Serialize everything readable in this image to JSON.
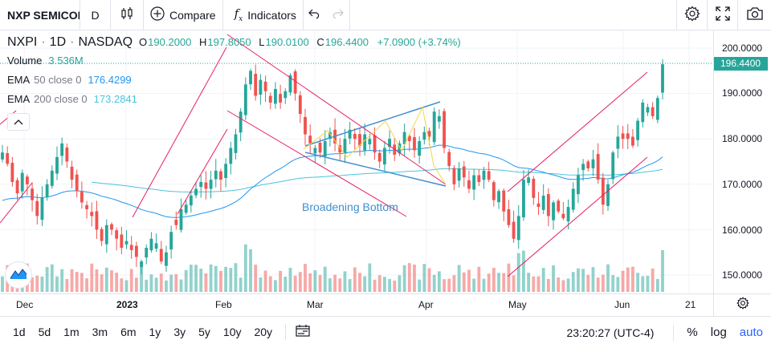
{
  "toolbar": {
    "symbol": "NXP SEMICONDUCTORS",
    "interval": "D",
    "compare_label": "Compare",
    "indicators_label": "Indicators"
  },
  "legend": {
    "symbol": "NXPI",
    "interval": "1D",
    "exchange": "NASDAQ",
    "open_label": "O",
    "open": "190.2000",
    "high_label": "H",
    "high": "197.8050",
    "low_label": "L",
    "low": "190.0100",
    "close_label": "C",
    "close": "196.4400",
    "change": "+7.0900 (+3.74%)",
    "volume_label": "Volume",
    "volume": "3.536M",
    "ema50_label": "EMA",
    "ema50_params": "50 close 0",
    "ema50_value": "176.4299",
    "ema200_label": "EMA",
    "ema200_params": "200 close 0",
    "ema200_value": "173.2841"
  },
  "annotation": {
    "pattern_label": "Broadening Bottom"
  },
  "price_axis": {
    "ticks": [
      "200.0000",
      "190.0000",
      "180.0000",
      "170.0000",
      "160.0000",
      "150.0000"
    ],
    "last_price": "196.4400"
  },
  "time_axis": {
    "ticks": [
      "Dec",
      "2023",
      "Feb",
      "Mar",
      "Apr",
      "May",
      "Jun",
      "21"
    ]
  },
  "bottom_bar": {
    "ranges": [
      "1d",
      "5d",
      "1m",
      "3m",
      "6m",
      "1y",
      "3y",
      "5y",
      "10y",
      "20y"
    ],
    "clock": "23:20:27 (UTC-4)",
    "percent_label": "%",
    "log_label": "log",
    "auto_label": "auto"
  },
  "colors": {
    "up": "#26a69a",
    "down": "#ef5350",
    "ema50": "#2196f3",
    "ema200": "#4dc3dc",
    "trendline": "#e91e63",
    "pattern": "#3f8fd0",
    "highlight": "#f5d547"
  },
  "chart_data": {
    "type": "candlestick",
    "ylim": [
      145,
      203
    ],
    "x_axis_labels": [
      "Dec",
      "2023",
      "Feb",
      "Mar",
      "Apr",
      "May",
      "Jun",
      "21"
    ],
    "y_axis_ticks": [
      150,
      160,
      170,
      180,
      190,
      200
    ],
    "last_close": 196.44,
    "indicators": [
      "EMA 50 close",
      "EMA 200 close",
      "Volume"
    ],
    "closes": [
      177.0,
      174.5,
      170.5,
      168.0,
      172.5,
      170.0,
      166.5,
      163.0,
      167.0,
      170.0,
      173.0,
      176.0,
      179.0,
      175.0,
      171.0,
      168.5,
      166.0,
      164.5,
      163.0,
      160.0,
      157.5,
      161.0,
      160.0,
      158.0,
      156.0,
      157.5,
      155.5,
      154.0,
      153.0,
      156.0,
      158.0,
      157.0,
      153.0,
      155.0,
      159.5,
      161.0,
      164.5,
      165.5,
      167.5,
      169.0,
      170.5,
      169.0,
      171.0,
      173.0,
      171.0,
      174.5,
      178.0,
      181.0,
      186.0,
      192.0,
      195.0,
      189.5,
      193.0,
      190.5,
      188.0,
      191.0,
      188.0,
      190.5,
      194.0,
      190.0,
      185.5,
      181.0,
      179.0,
      178.0,
      177.0,
      179.5,
      181.5,
      179.0,
      177.0,
      180.0,
      182.0,
      180.0,
      178.5,
      181.0,
      180.0,
      177.0,
      175.0,
      178.0,
      180.0,
      176.5,
      179.0,
      181.5,
      179.5,
      177.5,
      179.5,
      181.5,
      180.5,
      186.0,
      185.0,
      178.0,
      174.0,
      170.0,
      173.5,
      171.5,
      169.0,
      172.0,
      170.5,
      173.0,
      171.0,
      166.5,
      168.5,
      164.0,
      161.0,
      158.0,
      163.0,
      171.0,
      171.5,
      167.0,
      165.0,
      167.5,
      163.0,
      166.0,
      164.0,
      162.5,
      165.0,
      169.0,
      172.0,
      174.5,
      173.5,
      175.5,
      171.0,
      165.5,
      170.0,
      177.0,
      180.5,
      180.0,
      180.0,
      178.5,
      184.0,
      188.0,
      187.0,
      185.0,
      189.0,
      196.44
    ]
  }
}
